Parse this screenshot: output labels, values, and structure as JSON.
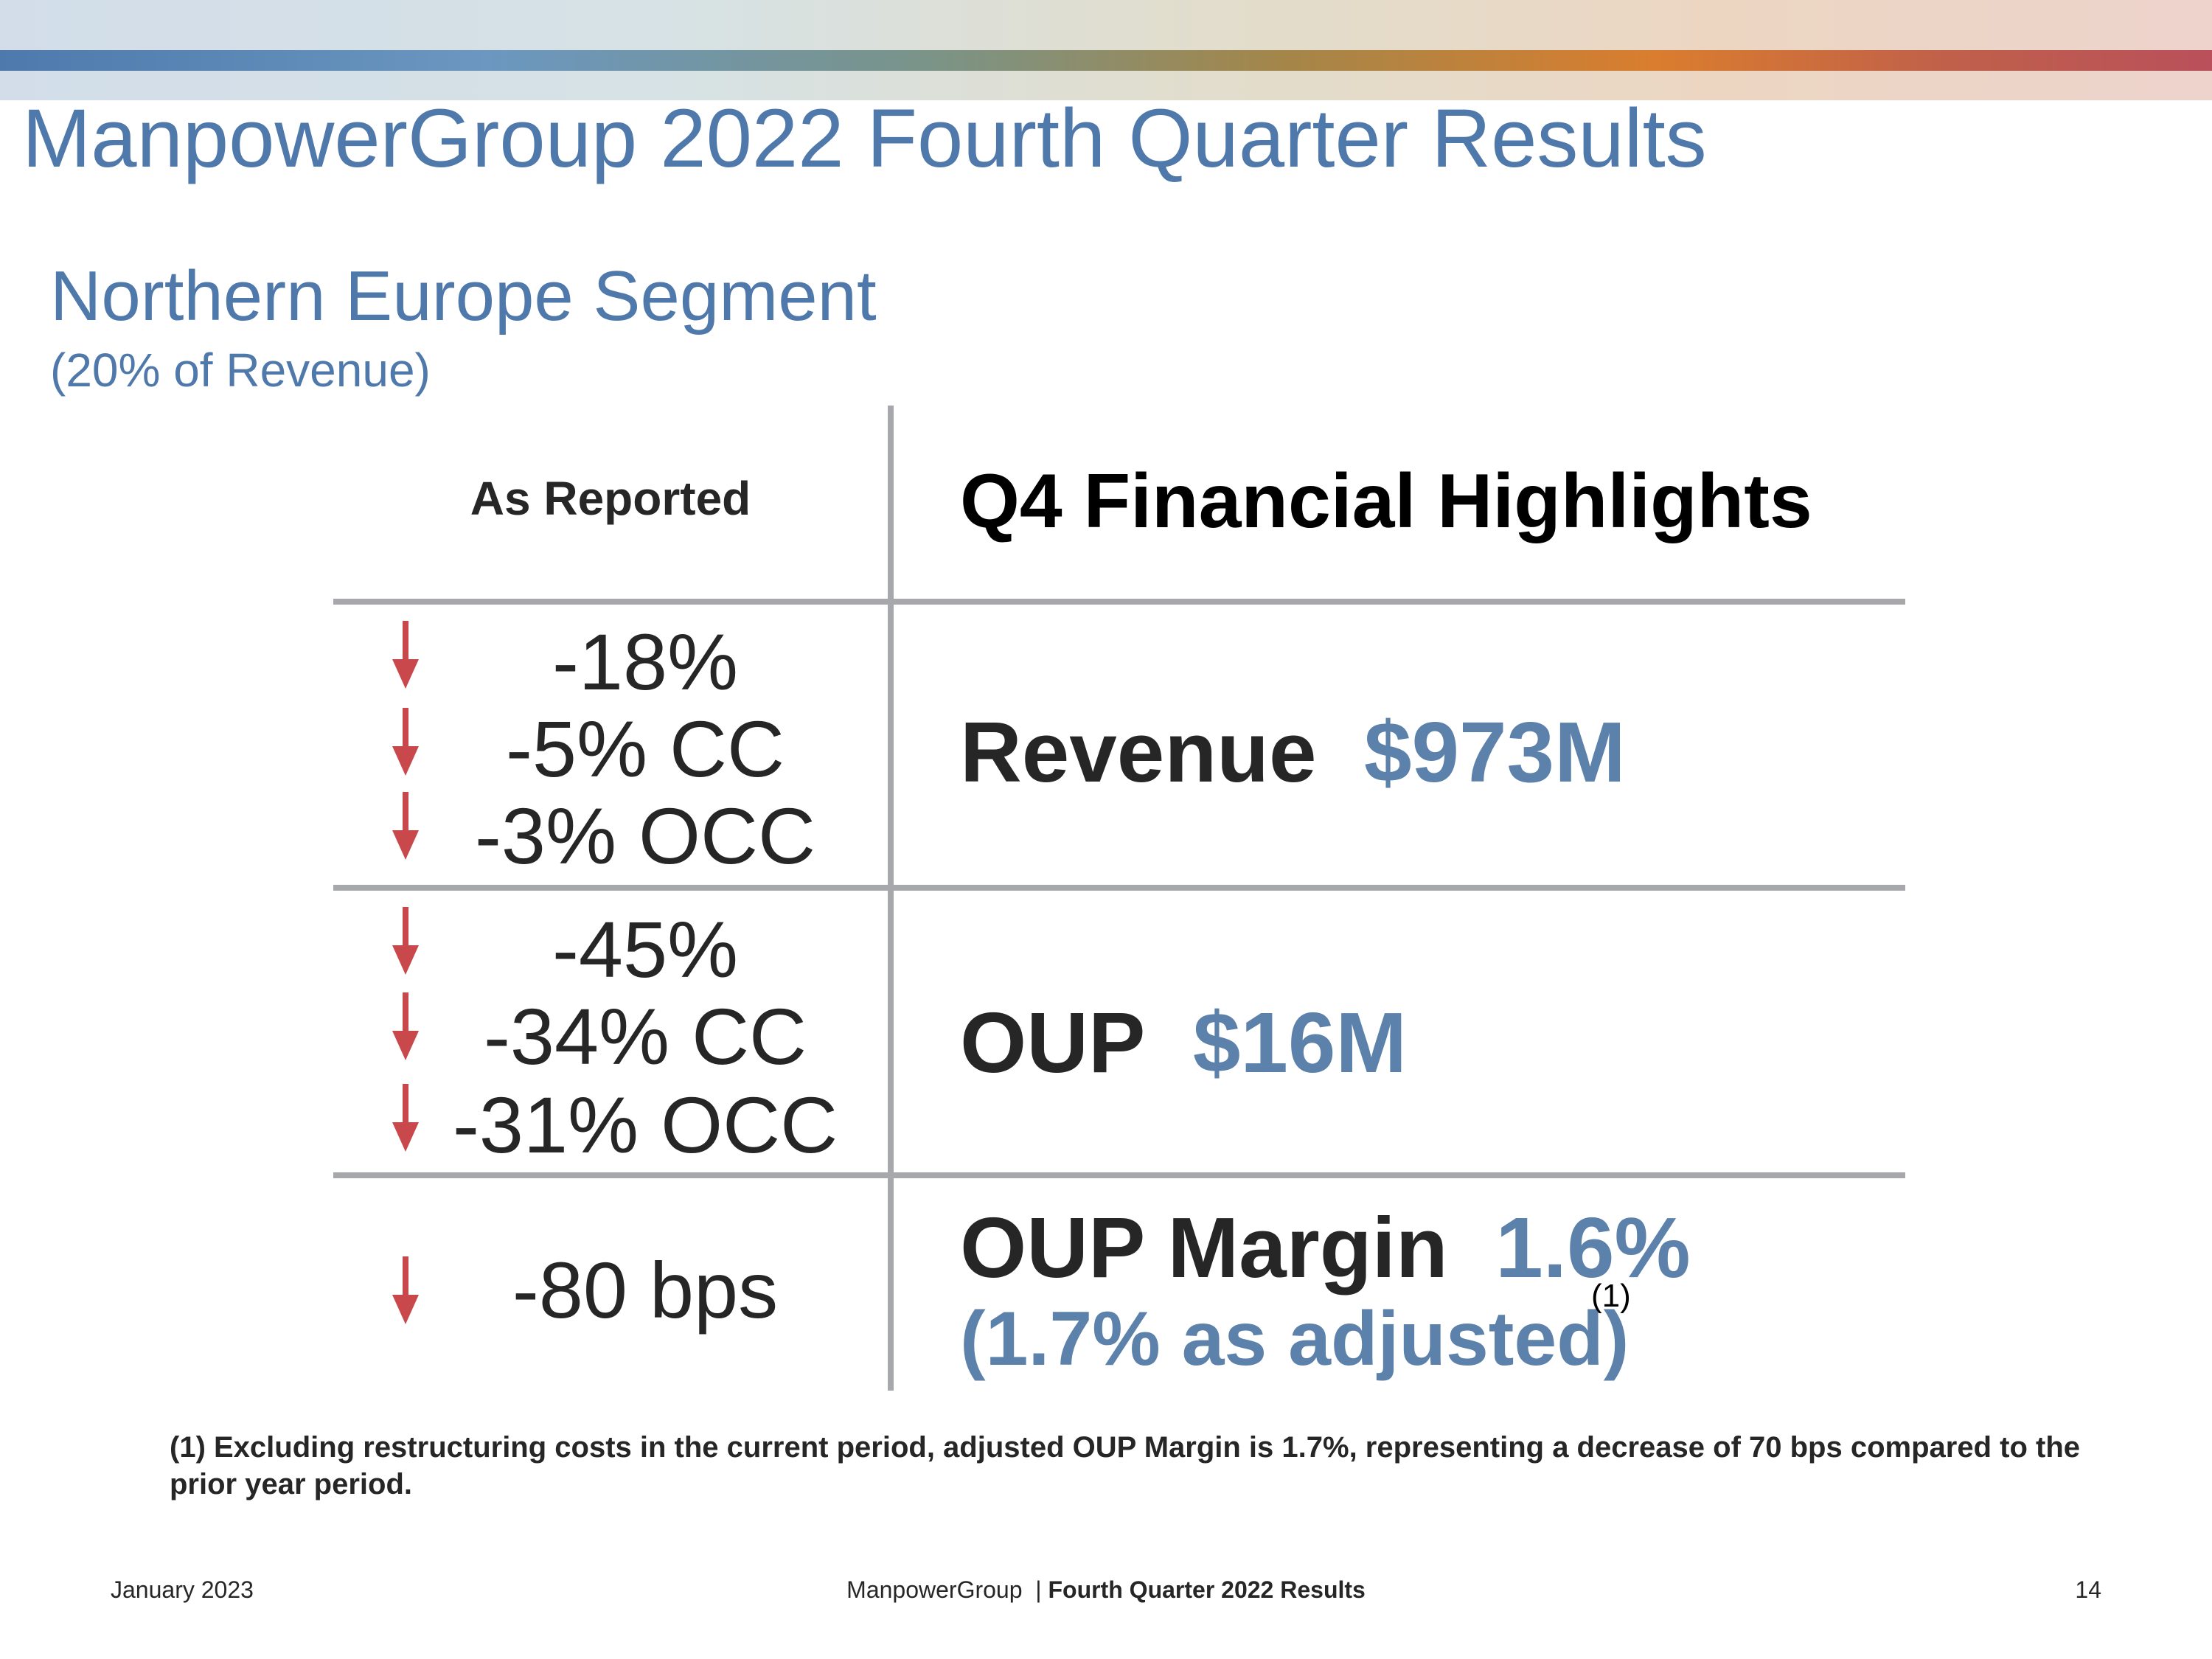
{
  "header": {
    "title": "ManpowerGroup 2022 Fourth Quarter Results"
  },
  "segment": {
    "title": "Northern Europe Segment",
    "subtitle": "(20% of Revenue)"
  },
  "table": {
    "left_header": "As Reported",
    "right_header": "Q4 Financial Highlights",
    "rows": [
      {
        "stats": [
          "-18%",
          "-5% CC",
          "-3% OCC"
        ],
        "metric_label": "Revenue",
        "metric_value": "$973M"
      },
      {
        "stats": [
          "-45%",
          "-34% CC",
          "-31% OCC"
        ],
        "metric_label": "OUP",
        "metric_value": "$16M"
      },
      {
        "stats": [
          "-80 bps"
        ],
        "metric_label": "OUP Margin",
        "metric_value": "1.6%",
        "adjusted_note": "(1.7% as adjusted)",
        "footnote_marker": "(1)"
      }
    ],
    "trend_direction": "down",
    "arrow_color": "#c9484b"
  },
  "footnote": "(1) Excluding restructuring costs in the current period, adjusted OUP Margin is 1.7%, representing a decrease of 70 bps compared to the prior year period.",
  "footer": {
    "date": "January 2023",
    "company": "ManpowerGroup",
    "separator": "|",
    "report": "Fourth Quarter 2022 Results",
    "page": "14"
  },
  "colors": {
    "title_blue": "#4f78ab",
    "value_blue": "#5c81aa",
    "divider_gray": "#a6a8ab"
  }
}
